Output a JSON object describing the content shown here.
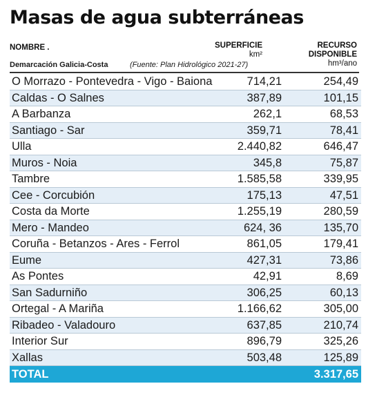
{
  "title": "Masas de agua subterráneas",
  "header": {
    "name_col": "NOMBRE .",
    "surface_col": "SUPERFICIE",
    "surface_unit": "km²",
    "resource_col": "RECURSO DISPONIBLE",
    "resource_unit": "hm³/ano",
    "demarcation": "Demarcación Galicia-Costa",
    "source": "(Fuente: Plan Hidrológico 2021-27)"
  },
  "rows": [
    {
      "name": "O Morrazo - Pontevedra - Vigo - Baiona",
      "surface": "714,21",
      "resource": "254,49"
    },
    {
      "name": "Caldas - O Salnes",
      "surface": "387,89",
      "resource": "101,15"
    },
    {
      "name": "A Barbanza",
      "surface": "262,1",
      "resource": "68,53"
    },
    {
      "name": "Santiago - Sar",
      "surface": "359,71",
      "resource": "78,41"
    },
    {
      "name": "Ulla",
      "surface": "2.440,82",
      "resource": "646,47"
    },
    {
      "name": "Muros - Noia",
      "surface": "345,8",
      "resource": "75,87"
    },
    {
      "name": "Tambre",
      "surface": "1.585,58",
      "resource": "339,95"
    },
    {
      "name": "Cee - Corcubión",
      "surface": "175,13",
      "resource": "47,51"
    },
    {
      "name": "Costa da Morte",
      "surface": "1.255,19",
      "resource": "280,59"
    },
    {
      "name": "Mero - Mandeo",
      "surface": "624, 36",
      "resource": "135,70"
    },
    {
      "name": "Coruña - Betanzos - Ares - Ferrol",
      "surface": "861,05",
      "resource": "179,41"
    },
    {
      "name": "Eume",
      "surface": "427,31",
      "resource": "73,86"
    },
    {
      "name": "As Pontes",
      "surface": "42,91",
      "resource": "8,69"
    },
    {
      "name": "San Sadurniño",
      "surface": "306,25",
      "resource": "60,13"
    },
    {
      "name": "Ortegal - A Mariña",
      "surface": "1.166,62",
      "resource": "305,00"
    },
    {
      "name": "Ribadeo - Valadouro",
      "surface": "637,85",
      "resource": "210,74"
    },
    {
      "name": "Interior Sur",
      "surface": "896,79",
      "resource": "325,26"
    },
    {
      "name": "Xallas",
      "surface": "503,48",
      "resource": "125,89"
    }
  ],
  "total": {
    "label": "TOTAL",
    "surface": "",
    "resource": "3.317,65"
  },
  "colors": {
    "stripe": "#e4eef7",
    "total_bg": "#1ea7d6"
  }
}
